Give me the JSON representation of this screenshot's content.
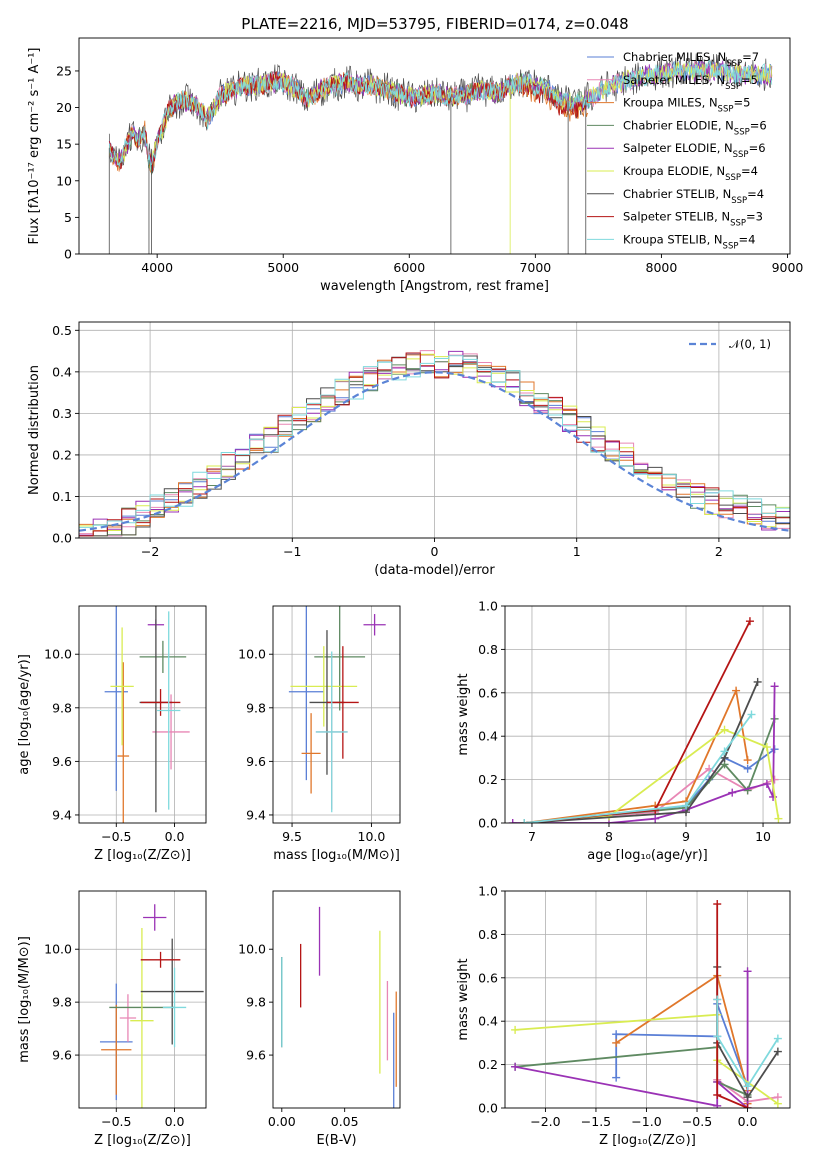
{
  "title": "PLATE=2216, MJD=53795, FIBERID=0174, z=0.048",
  "colors": [
    "#5a7fd6",
    "#e887b5",
    "#e0772b",
    "#5f8a62",
    "#9a32b5",
    "#d9ec52",
    "#4d4d4d",
    "#b51515",
    "#7fd9dd"
  ],
  "legend": [
    {
      "label": "Chabrier MILES, N",
      "sub": "SSP",
      "tail": "=7"
    },
    {
      "label": "Salpeter MILES, N",
      "sub": "SSP",
      "tail": "=5"
    },
    {
      "label": "Kroupa MILES, N",
      "sub": "SSP",
      "tail": "=5"
    },
    {
      "label": "Chabrier ELODIE, N",
      "sub": "SSP",
      "tail": "=6"
    },
    {
      "label": "Salpeter ELODIE, N",
      "sub": "SSP",
      "tail": "=6"
    },
    {
      "label": "Kroupa ELODIE, N",
      "sub": "SSP",
      "tail": "=4"
    },
    {
      "label": "Chabrier STELIB, N",
      "sub": "SSP",
      "tail": "=4"
    },
    {
      "label": "Salpeter STELIB, N",
      "sub": "SSP",
      "tail": "=3"
    },
    {
      "label": "Kroupa STELIB, N",
      "sub": "SSP",
      "tail": "=4"
    }
  ],
  "chart_data": [
    {
      "id": "spectrum",
      "type": "line",
      "xlabel": "wavelength [Angstrom, rest frame]",
      "ylabel": "Flux [fλ10⁻¹⁷ erg cm⁻² s⁻¹ A⁻¹]",
      "xlim": [
        3380,
        9020
      ],
      "ylim": [
        0,
        29.5
      ],
      "xticks": [
        4000,
        5000,
        6000,
        7000,
        8000,
        9000
      ],
      "yticks": [
        0,
        5,
        10,
        15,
        20,
        25
      ],
      "grid": false,
      "spectrum_x": [
        3620,
        3650,
        3700,
        3750,
        3800,
        3850,
        3900,
        3930,
        3960,
        4000,
        4050,
        4100,
        4200,
        4300,
        4400,
        4500,
        4600,
        4700,
        4800,
        4900,
        5000,
        5100,
        5200,
        5300,
        5400,
        5500,
        5600,
        5700,
        5800,
        5900,
        6000,
        6100,
        6200,
        6300,
        6400,
        6500,
        6600,
        6700,
        6800,
        6900,
        7000,
        7100,
        7200,
        7300,
        7400,
        7500,
        7600,
        7700,
        7800,
        7900,
        8000,
        8100,
        8200,
        8300,
        8400,
        8500,
        8600,
        8700,
        8800,
        8900
      ],
      "spectrum_y": [
        14.5,
        13.5,
        12.5,
        14.5,
        16.5,
        15.5,
        17.0,
        13.0,
        12.0,
        15.5,
        17.5,
        20.0,
        21.0,
        20.5,
        18.5,
        21.5,
        22.5,
        23.0,
        23.0,
        23.5,
        23.5,
        22.5,
        21.0,
        22.5,
        23.0,
        23.5,
        23.0,
        23.0,
        22.5,
        22.0,
        21.5,
        21.5,
        22.0,
        21.5,
        21.5,
        22.0,
        22.5,
        22.0,
        23.0,
        23.5,
        23.0,
        22.5,
        21.0,
        20.5,
        21.0,
        22.0,
        23.0,
        23.5,
        24.0,
        24.5,
        24.5,
        25.0,
        25.0,
        25.0,
        25.0,
        25.0,
        24.5,
        24.5,
        24.5,
        24.5
      ]
    },
    {
      "id": "residuals",
      "type": "histogram",
      "xlabel": "(data-model)/error",
      "ylabel": "Normed distribution",
      "xlim": [
        -2.5,
        2.5
      ],
      "ylim": [
        0,
        0.52
      ],
      "xticks": [
        -2,
        -1,
        0,
        1,
        2
      ],
      "yticks": [
        0.0,
        0.1,
        0.2,
        0.3,
        0.4,
        0.5
      ],
      "grid": true,
      "bin_width": 0.1,
      "reference": {
        "name": "𝒩(0, 1)",
        "mean": 0,
        "sigma": 1,
        "color": "#5b84d6"
      }
    },
    {
      "id": "age_Z",
      "type": "errorbar",
      "xlabel": "Z [log₁₀(Z/Z⊙)]",
      "ylabel": "age  [log₁₀(age/yr)]",
      "xlim": [
        -0.82,
        0.27
      ],
      "ylim": [
        9.37,
        10.18
      ],
      "xticks": [
        -0.5,
        0.0
      ],
      "xticklabels": [
        "−0.5",
        "0.0"
      ],
      "yticks": [
        9.4,
        9.6,
        9.8,
        10.0
      ],
      "yticklabels": [
        "9.4",
        "9.6",
        "9.8",
        "10.0"
      ],
      "grid": true,
      "points": [
        {
          "x": -0.5,
          "xerr": 0.1,
          "y": 9.86,
          "yerr": 0.37
        },
        {
          "x": -0.03,
          "xerr": 0.16,
          "y": 9.71,
          "yerr": 0.14
        },
        {
          "x": -0.44,
          "xerr": 0.05,
          "y": 9.62,
          "yerr": 0.35
        },
        {
          "x": -0.1,
          "xerr": 0.2,
          "y": 9.99,
          "yerr": 0.06
        },
        {
          "x": -0.16,
          "xerr": 0.07,
          "y": 10.11,
          "yerr": 0.02
        },
        {
          "x": -0.45,
          "xerr": 0.1,
          "y": 9.88,
          "yerr": 0.22
        },
        {
          "x": -0.16,
          "xerr": 0.14,
          "y": 9.82,
          "yerr": 0.41
        },
        {
          "x": -0.12,
          "xerr": 0.17,
          "y": 9.82,
          "yerr": 0.05
        },
        {
          "x": -0.05,
          "xerr": 0.1,
          "y": 9.79,
          "yerr": 0.37
        }
      ]
    },
    {
      "id": "age_mass",
      "type": "errorbar",
      "xlabel": "mass [log₁₀(M/M⊙)]",
      "ylabel": "",
      "xlim": [
        9.38,
        10.18
      ],
      "ylim": [
        9.37,
        10.18
      ],
      "xticks": [
        9.5,
        10.0
      ],
      "xticklabels": [
        "9.5",
        "10.0"
      ],
      "yticks": [
        9.4,
        9.6,
        9.8,
        10.0
      ],
      "yticklabels": [
        "9.4",
        "9.6",
        "9.8",
        "10.0"
      ],
      "grid": true,
      "points": [
        {
          "x": 9.59,
          "xerr": 0.11,
          "y": 9.86,
          "yerr": 0.33
        },
        {
          "x": 9.75,
          "xerr": 0.1,
          "y": 9.71,
          "yerr": 0.29
        },
        {
          "x": 9.62,
          "xerr": 0.06,
          "y": 9.63,
          "yerr": 0.15
        },
        {
          "x": 9.8,
          "xerr": 0.16,
          "y": 9.99,
          "yerr": 0.2
        },
        {
          "x": 10.02,
          "xerr": 0.07,
          "y": 10.11,
          "yerr": 0.04
        },
        {
          "x": 9.7,
          "xerr": 0.21,
          "y": 9.88,
          "yerr": 0.15
        },
        {
          "x": 9.72,
          "xerr": 0.11,
          "y": 9.82,
          "yerr": 0.27
        },
        {
          "x": 9.82,
          "xerr": 0.1,
          "y": 9.82,
          "yerr": 0.21
        },
        {
          "x": 9.75,
          "xerr": 0.1,
          "y": 9.71,
          "yerr": 0.3
        }
      ]
    },
    {
      "id": "weight_age",
      "type": "line",
      "xlabel": "age  [log₁₀(age/yr)]",
      "ylabel": "mass weight",
      "xlim": [
        6.65,
        10.35
      ],
      "ylim": [
        0,
        1.0
      ],
      "xticks": [
        7,
        8,
        9,
        10
      ],
      "yticks": [
        0.0,
        0.2,
        0.4,
        0.6,
        0.8,
        1.0
      ],
      "grid": true,
      "series": [
        {
          "values": [
            [
              6.9,
              0.0
            ],
            [
              8.0,
              0.03
            ],
            [
              9.0,
              0.08
            ],
            [
              9.3,
              0.2
            ],
            [
              9.5,
              0.3
            ],
            [
              9.8,
              0.25
            ],
            [
              10.15,
              0.34
            ]
          ]
        },
        {
          "values": [
            [
              6.9,
              0.0
            ],
            [
              8.6,
              0.05
            ],
            [
              9.3,
              0.25
            ],
            [
              9.8,
              0.15
            ],
            [
              10.15,
              0.2
            ]
          ]
        },
        {
          "values": [
            [
              6.9,
              0.0
            ],
            [
              8.6,
              0.08
            ],
            [
              9.0,
              0.1
            ],
            [
              9.65,
              0.61
            ],
            [
              9.8,
              0.29
            ]
          ]
        },
        {
          "values": [
            [
              6.9,
              0.0
            ],
            [
              9.0,
              0.07
            ],
            [
              9.5,
              0.27
            ],
            [
              9.8,
              0.15
            ],
            [
              10.15,
              0.48
            ]
          ]
        },
        {
          "values": [
            [
              6.75,
              0.0
            ],
            [
              8.0,
              0.0
            ],
            [
              8.6,
              0.02
            ],
            [
              9.0,
              0.06
            ],
            [
              9.6,
              0.14
            ],
            [
              10.05,
              0.18
            ],
            [
              10.13,
              0.12
            ],
            [
              10.15,
              0.63
            ]
          ]
        },
        {
          "values": [
            [
              6.9,
              0.0
            ],
            [
              8.0,
              0.03
            ],
            [
              9.5,
              0.43
            ],
            [
              10.05,
              0.35
            ],
            [
              10.2,
              0.02
            ]
          ]
        },
        {
          "values": [
            [
              6.9,
              0.0
            ],
            [
              9.0,
              0.05
            ],
            [
              9.5,
              0.3
            ],
            [
              9.93,
              0.65
            ]
          ]
        },
        {
          "values": [
            [
              6.9,
              0.0
            ],
            [
              8.6,
              0.06
            ],
            [
              9.83,
              0.93
            ]
          ]
        },
        {
          "values": [
            [
              6.9,
              0.0
            ],
            [
              9.0,
              0.08
            ],
            [
              9.5,
              0.33
            ],
            [
              9.85,
              0.5
            ]
          ]
        }
      ]
    },
    {
      "id": "mass_Z",
      "type": "errorbar",
      "xlabel": "Z [log₁₀(Z/Z⊙)]",
      "ylabel": "mass [log₁₀(M/M⊙)]",
      "xlim": [
        -0.82,
        0.27
      ],
      "ylim": [
        9.4,
        10.22
      ],
      "xticks": [
        -0.5,
        0.0
      ],
      "xticklabels": [
        "−0.5",
        "0.0"
      ],
      "yticks": [
        9.6,
        9.8,
        10.0
      ],
      "yticklabels": [
        "9.6",
        "9.8",
        "10.0"
      ],
      "grid": true,
      "points": [
        {
          "x": -0.5,
          "xerr": 0.14,
          "y": 9.65,
          "yerr": 0.22
        },
        {
          "x": -0.4,
          "xerr": 0.07,
          "y": 9.74,
          "yerr": 0.09
        },
        {
          "x": -0.5,
          "xerr": 0.13,
          "y": 9.62,
          "yerr": 0.17
        },
        {
          "x": -0.28,
          "xerr": 0.28,
          "y": 9.78,
          "yerr": 0.05
        },
        {
          "x": -0.17,
          "xerr": 0.1,
          "y": 10.12,
          "yerr": 0.05
        },
        {
          "x": -0.28,
          "xerr": 0.1,
          "y": 9.73,
          "yerr": 0.35
        },
        {
          "x": -0.02,
          "xerr": 0.27,
          "y": 9.84,
          "yerr": 0.2
        },
        {
          "x": -0.12,
          "xerr": 0.17,
          "y": 9.96,
          "yerr": 0.03
        },
        {
          "x": 0.0,
          "xerr": 0.1,
          "y": 9.78,
          "yerr": 0.15
        }
      ]
    },
    {
      "id": "mass_EBV",
      "type": "errorbar",
      "xlabel": "E(B-V)",
      "ylabel": "",
      "xlim": [
        -0.007,
        0.094
      ],
      "ylim": [
        9.4,
        10.22
      ],
      "xticks": [
        0.0,
        0.05
      ],
      "xticklabels": [
        "0.00",
        "0.05"
      ],
      "yticks": [
        9.6,
        9.8,
        10.0
      ],
      "yticklabels": [
        "9.6",
        "9.8",
        "10.0"
      ],
      "grid": false,
      "points": [
        {
          "x": 0.089,
          "y": 9.58,
          "yerr": 0.18
        },
        {
          "x": 0.084,
          "y": 9.73,
          "yerr": 0.15
        },
        {
          "x": 0.091,
          "y": 9.66,
          "yerr": 0.18
        },
        {
          "x": 0.0,
          "y": 9.8,
          "yerr": 0.17
        },
        {
          "x": 0.03,
          "y": 10.03,
          "yerr": 0.13
        },
        {
          "x": 0.078,
          "y": 9.8,
          "yerr": 0.27
        },
        {
          "x": 0.0,
          "y": 9.8,
          "yerr": 0.17
        },
        {
          "x": 0.015,
          "y": 9.9,
          "yerr": 0.12
        },
        {
          "x": 0.0,
          "y": 9.8,
          "yerr": 0.17
        }
      ]
    },
    {
      "id": "weight_Z",
      "type": "line",
      "xlabel": "Z [log₁₀(Z/Z⊙)]",
      "ylabel": "mass weight",
      "xlim": [
        -2.4,
        0.42
      ],
      "ylim": [
        0,
        1.0
      ],
      "xticks": [
        -2.0,
        -1.5,
        -1.0,
        -0.5,
        0.0
      ],
      "xticklabels": [
        "−2.0",
        "−1.5",
        "−1.0",
        "−0.5",
        "0.0"
      ],
      "yticks": [
        0.0,
        0.2,
        0.4,
        0.6,
        0.8,
        1.0
      ],
      "grid": true,
      "series": [
        {
          "values": [
            [
              -1.3,
              0.14
            ],
            [
              -1.3,
              0.34
            ],
            [
              -0.3,
              0.33
            ],
            [
              -0.3,
              0.48
            ],
            [
              0.0,
              0.1
            ]
          ]
        },
        {
          "values": [
            [
              -0.3,
              0.5
            ],
            [
              -0.3,
              0.13
            ],
            [
              0.0,
              0.03
            ],
            [
              0.3,
              0.05
            ]
          ]
        },
        {
          "values": [
            [
              -1.3,
              0.3
            ],
            [
              -0.3,
              0.61
            ],
            [
              0.0,
              0.08
            ],
            [
              0.0,
              0.02
            ]
          ]
        },
        {
          "values": [
            [
              -2.3,
              0.19
            ],
            [
              -0.3,
              0.28
            ],
            [
              -0.3,
              0.12
            ],
            [
              0.0,
              0.06
            ]
          ]
        },
        {
          "values": [
            [
              -2.3,
              0.19
            ],
            [
              -0.3,
              0.01
            ],
            [
              -0.3,
              0.12
            ],
            [
              0.0,
              0.0
            ],
            [
              0.0,
              0.63
            ]
          ]
        },
        {
          "values": [
            [
              -2.3,
              0.36
            ],
            [
              -0.3,
              0.43
            ],
            [
              -0.3,
              0.22
            ],
            [
              0.3,
              0.02
            ]
          ]
        },
        {
          "values": [
            [
              -0.3,
              0.65
            ],
            [
              -0.3,
              0.3
            ],
            [
              0.0,
              0.05
            ],
            [
              0.3,
              0.26
            ]
          ]
        },
        {
          "values": [
            [
              -0.3,
              0.94
            ],
            [
              -0.3,
              0.06
            ],
            [
              0.0,
              0.0
            ]
          ]
        },
        {
          "values": [
            [
              -0.3,
              0.5
            ],
            [
              -0.3,
              0.33
            ],
            [
              0.0,
              0.1
            ],
            [
              0.3,
              0.32
            ]
          ]
        }
      ]
    }
  ]
}
